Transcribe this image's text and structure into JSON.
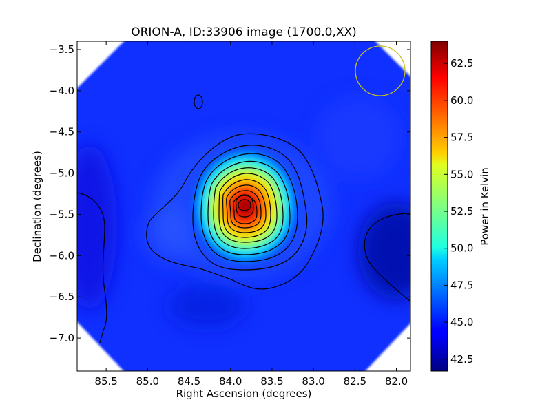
{
  "chart_data": {
    "type": "heatmap",
    "title": "ORION-A, ID:33906 image (1700.0,XX)",
    "xlabel": "Right Ascension (degrees)",
    "ylabel": "Declination (degrees)",
    "colorbar_label": "Power in Kelvin",
    "xlim": [
      85.85,
      81.83
    ],
    "ylim": [
      -7.4,
      -3.4
    ],
    "x_ticks": [
      {
        "value": 85.5,
        "label": "85.5"
      },
      {
        "value": 85.0,
        "label": "85.0"
      },
      {
        "value": 84.5,
        "label": "84.5"
      },
      {
        "value": 84.0,
        "label": "84.0"
      },
      {
        "value": 83.5,
        "label": "83.5"
      },
      {
        "value": 83.0,
        "label": "83.0"
      },
      {
        "value": 82.5,
        "label": "82.5"
      },
      {
        "value": 82.0,
        "label": "82.0"
      }
    ],
    "y_ticks": [
      {
        "value": -3.5,
        "label": "−3.5"
      },
      {
        "value": -4.0,
        "label": "−4.0"
      },
      {
        "value": -4.5,
        "label": "−4.5"
      },
      {
        "value": -5.0,
        "label": "−5.0"
      },
      {
        "value": -5.5,
        "label": "−5.5"
      },
      {
        "value": -6.0,
        "label": "−6.0"
      },
      {
        "value": -6.5,
        "label": "−6.5"
      },
      {
        "value": -7.0,
        "label": "−7.0"
      }
    ],
    "colorbar_range": [
      41.7,
      64.0
    ],
    "colorbar_ticks": [
      {
        "value": 42.5,
        "label": "42.5"
      },
      {
        "value": 45.0,
        "label": "45.0"
      },
      {
        "value": 47.5,
        "label": "47.5"
      },
      {
        "value": 50.0,
        "label": "50.0"
      },
      {
        "value": 52.5,
        "label": "52.5"
      },
      {
        "value": 55.0,
        "label": "55.0"
      },
      {
        "value": 57.5,
        "label": "57.5"
      },
      {
        "value": 60.0,
        "label": "60.0"
      },
      {
        "value": 62.5,
        "label": "62.5"
      }
    ],
    "colormap": "jet",
    "background_level_K": 44.5,
    "peak": {
      "ra": 83.83,
      "dec": -5.4,
      "value_K": 63.5
    },
    "beam_circle": {
      "ra": 82.17,
      "dec": -3.75,
      "color": "#c8c020"
    }
  }
}
